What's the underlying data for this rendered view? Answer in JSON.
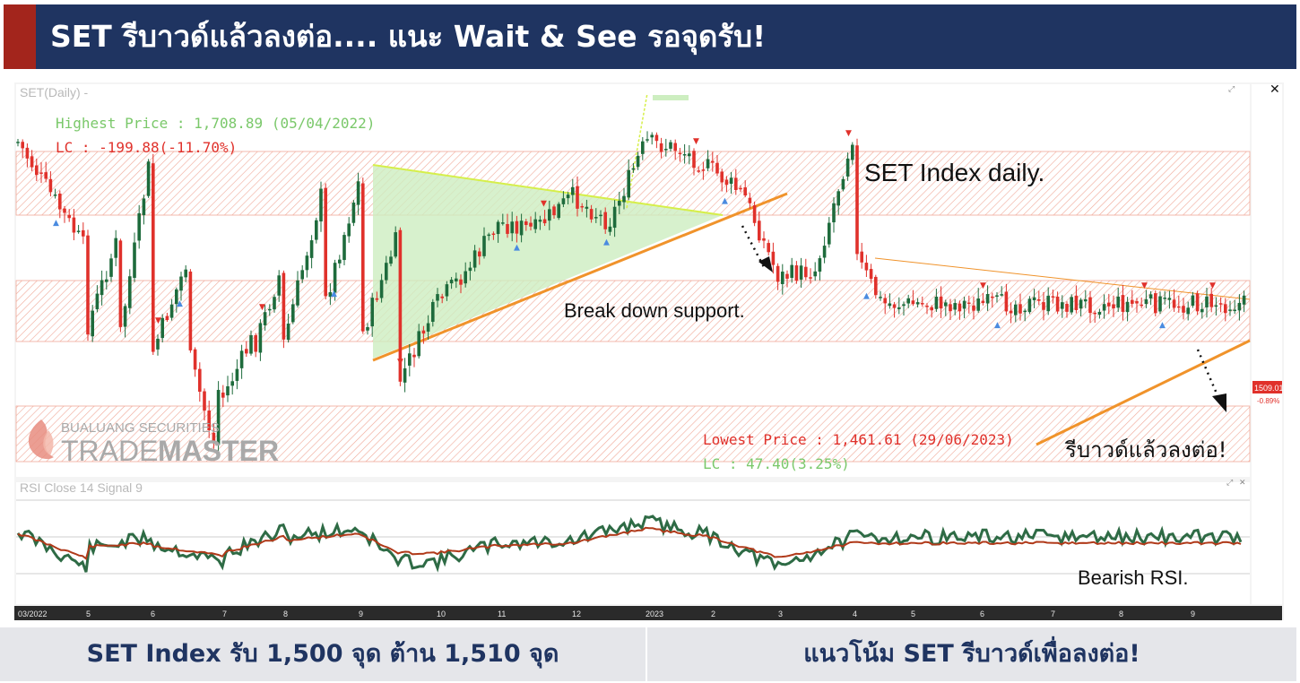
{
  "header": {
    "title": "SET รีบาวด์แล้วลงต่อ.... แนะ Wait & See รอจุดรับ!",
    "accent_color": "#a3251c",
    "bar_color": "#1f3461"
  },
  "chart": {
    "main_label": "SET(Daily) -",
    "rsi_label": "RSI Close 14 Signal 9",
    "highest_price": "Highest Price : 1,708.89 (05/04/2022)",
    "highest_lc": "LC : -199.88(-11.70%)",
    "lowest_price": "Lowest Price : 1,461.61 (29/06/2023)",
    "lowest_lc": "LC : 47.40(3.25%)",
    "annotation_index": "SET Index daily.",
    "annotation_breakdown": "Break down support.",
    "annotation_rebound": "รีบาวด์แล้วลงต่อ!",
    "annotation_rsi": "Bearish RSI.",
    "last_price": "1509.01",
    "last_change": "-0.89%",
    "logo_top": "BUALUANG SECURITIES",
    "logo_trade": "TRADE",
    "logo_master": "MASTER",
    "x_ticks": [
      "03/2022",
      "5",
      "6",
      "7",
      "8",
      "9",
      "10",
      "11",
      "12",
      "2023",
      "2",
      "3",
      "4",
      "5",
      "6",
      "7",
      "8",
      "9"
    ],
    "colors": {
      "up": "#1e6b3c",
      "down": "#e0312b",
      "resistance_zone": "#f3b7aa",
      "triangle": "#cdeec0",
      "support_line": "#f0932b",
      "rsi": "#2e6b45",
      "rsi_signal": "#b03a1a"
    }
  },
  "chart_data": {
    "type": "line",
    "title": "SET Index daily.",
    "x_ticks": [
      "03/2022",
      "5",
      "6",
      "7",
      "8",
      "9",
      "10",
      "11",
      "12",
      "2023",
      "2",
      "3",
      "4",
      "5",
      "6",
      "7",
      "8",
      "9"
    ],
    "series": [
      {
        "name": "SET",
        "points": [
          [
            "03/2022",
            1690
          ],
          [
            "4",
            1695
          ],
          [
            "5",
            1610
          ],
          [
            "5.5",
            1620
          ],
          [
            "6",
            1680
          ],
          [
            "6.5",
            1600
          ],
          [
            "7",
            1560
          ],
          [
            "7.5",
            1545
          ],
          [
            "8",
            1600
          ],
          [
            "8.5",
            1650
          ],
          [
            "9",
            1660
          ],
          [
            "9.5",
            1620
          ],
          [
            "10",
            1570
          ],
          [
            "10.5",
            1595
          ],
          [
            "11",
            1630
          ],
          [
            "11.5",
            1625
          ],
          [
            "12",
            1650
          ],
          [
            "12.5",
            1630
          ],
          [
            "2023",
            1690
          ],
          [
            "1.5",
            1685
          ],
          [
            "2",
            1670
          ],
          [
            "2.5",
            1650
          ],
          [
            "3",
            1590
          ],
          [
            "3.5",
            1595
          ],
          [
            "4",
            1610
          ],
          [
            "4.5",
            1570
          ],
          [
            "5",
            1550
          ],
          [
            "5.5",
            1540
          ],
          [
            "6",
            1530
          ],
          [
            "6.5",
            1540
          ],
          [
            "6.9",
            1462
          ],
          [
            "7",
            1500
          ],
          [
            "7.5",
            1535
          ],
          [
            "8",
            1540
          ],
          [
            "8.5",
            1560
          ],
          [
            "9",
            1540
          ],
          [
            "9.5",
            1510
          ]
        ]
      },
      {
        "name": "RSI",
        "points": [
          [
            "03/2022",
            60
          ],
          [
            "5",
            30
          ],
          [
            "6",
            55
          ],
          [
            "7",
            35
          ],
          [
            "8",
            60
          ],
          [
            "9",
            62
          ],
          [
            "10",
            35
          ],
          [
            "11",
            50
          ],
          [
            "12",
            52
          ],
          [
            "2023",
            68
          ],
          [
            "2",
            56
          ],
          [
            "3",
            30
          ],
          [
            "4",
            55
          ],
          [
            "5",
            45
          ],
          [
            "6",
            50
          ],
          [
            "7",
            40
          ],
          [
            "8",
            55
          ],
          [
            "9",
            62
          ],
          [
            "9.5",
            35
          ]
        ]
      },
      {
        "name": "Signal",
        "points": [
          [
            "03/2022",
            58
          ],
          [
            "5",
            38
          ],
          [
            "6",
            50
          ],
          [
            "7",
            40
          ],
          [
            "8",
            55
          ],
          [
            "9",
            58
          ],
          [
            "10",
            42
          ],
          [
            "11",
            48
          ],
          [
            "12",
            50
          ],
          [
            "2023",
            62
          ],
          [
            "2",
            55
          ],
          [
            "3",
            38
          ],
          [
            "4",
            50
          ],
          [
            "5",
            47
          ],
          [
            "6",
            48
          ],
          [
            "7",
            42
          ],
          [
            "8",
            52
          ],
          [
            "9",
            58
          ],
          [
            "9.5",
            42
          ]
        ]
      }
    ],
    "annotations": [
      "Highest Price : 1,708.89 (05/04/2022)",
      "LC : -199.88(-11.70%)",
      "Lowest Price : 1,461.61 (29/06/2023)",
      "LC : 47.40(3.25%)",
      "Break down support.",
      "รีบาวด์แล้วลงต่อ!",
      "Bearish RSI."
    ],
    "last_value": 1509.01,
    "last_change_pct": -0.89
  },
  "footer": {
    "left": "SET Index รับ 1,500 จุด ต้าน 1,510 จุด",
    "right": "แนวโน้ม SET รีบาวด์เพื่อลงต่อ!"
  }
}
